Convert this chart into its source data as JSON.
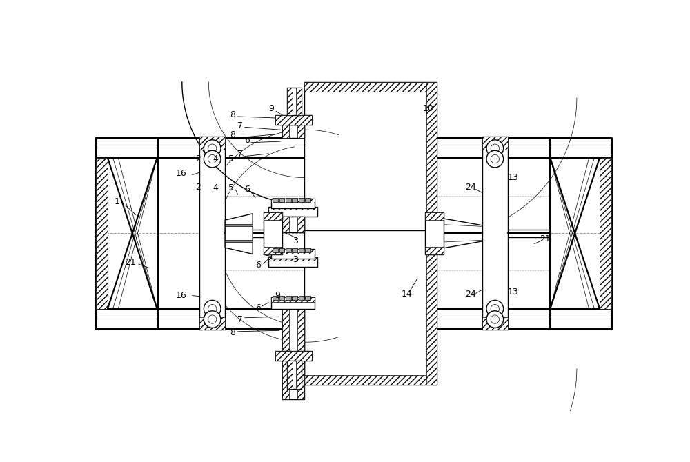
{
  "bg_color": "#ffffff",
  "fig_width": 10.0,
  "fig_height": 6.7,
  "lw_main": 1.0,
  "lw_thin": 0.5,
  "lw_thick": 1.6,
  "lw_xthick": 2.2
}
